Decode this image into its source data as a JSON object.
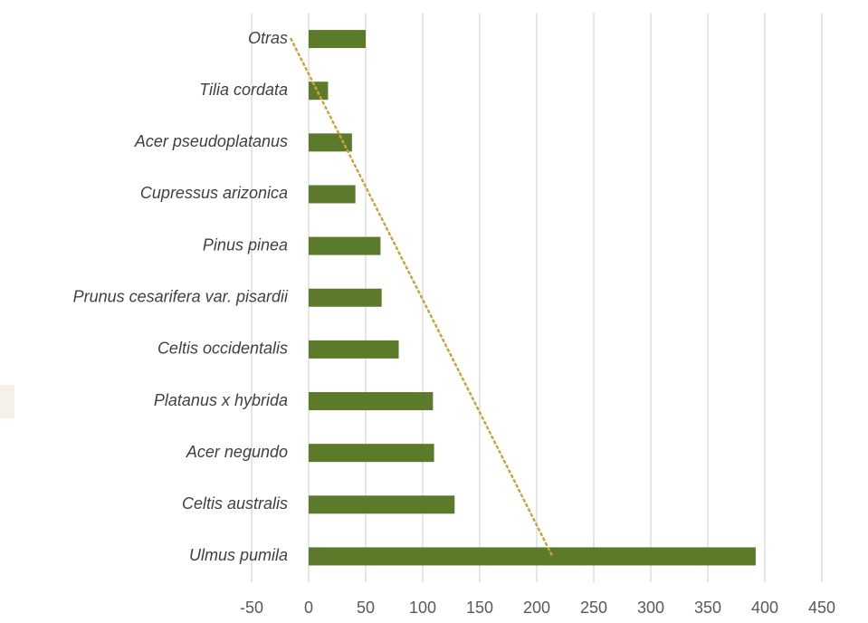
{
  "chart_data": {
    "type": "barh",
    "categories": [
      "Otras",
      "Tilia cordata",
      "Acer pseudoplatanus",
      "Cupressus arizonica",
      "Pinus pinea",
      "Prunus cesarifera var. pisardii",
      "Celtis occidentalis",
      "Platanus x hybrida",
      "Acer negundo",
      "Celtis australis",
      "Ulmus pumila"
    ],
    "values": [
      50,
      17,
      38,
      41,
      63,
      64,
      79,
      109,
      110,
      128,
      392
    ],
    "color": "#5b7b2b",
    "xlim": [
      -50,
      450
    ],
    "xticks": [
      -50,
      0,
      50,
      100,
      150,
      200,
      250,
      300,
      350,
      400,
      450
    ],
    "grid": true,
    "trendline": {
      "type": "linear",
      "color": "#c9a43a"
    }
  }
}
